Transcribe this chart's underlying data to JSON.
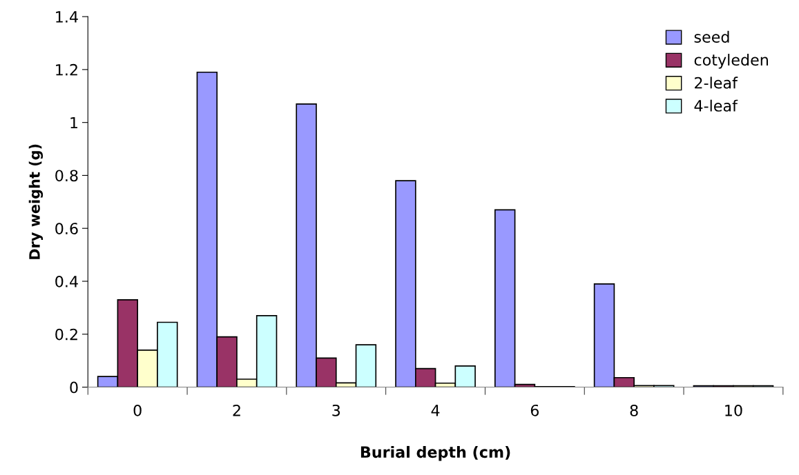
{
  "chart_data": {
    "type": "bar",
    "xlabel": "Burial depth (cm)",
    "ylabel": "Dry weight (g)",
    "categories": [
      "0",
      "2",
      "3",
      "4",
      "6",
      "8",
      "10"
    ],
    "series": [
      {
        "name": "seed",
        "color": "#9999ff",
        "values": [
          0.04,
          1.19,
          1.07,
          0.78,
          0.67,
          0.39,
          0.005
        ]
      },
      {
        "name": "cotyleden",
        "color": "#993366",
        "values": [
          0.33,
          0.19,
          0.11,
          0.07,
          0.01,
          0.036,
          0.005
        ]
      },
      {
        "name": "2-leaf",
        "color": "#ffffcc",
        "values": [
          0.14,
          0.03,
          0.016,
          0.015,
          0.002,
          0.006,
          0.005
        ]
      },
      {
        "name": "4-leaf",
        "color": "#ccffff",
        "values": [
          0.245,
          0.27,
          0.16,
          0.08,
          0.002,
          0.006,
          0.005
        ]
      }
    ],
    "ylim": [
      0,
      1.4
    ],
    "yticks": [
      0,
      0.2,
      0.4,
      0.6,
      0.8,
      1,
      1.2,
      1.4
    ],
    "grid": false,
    "legend": "top right"
  }
}
